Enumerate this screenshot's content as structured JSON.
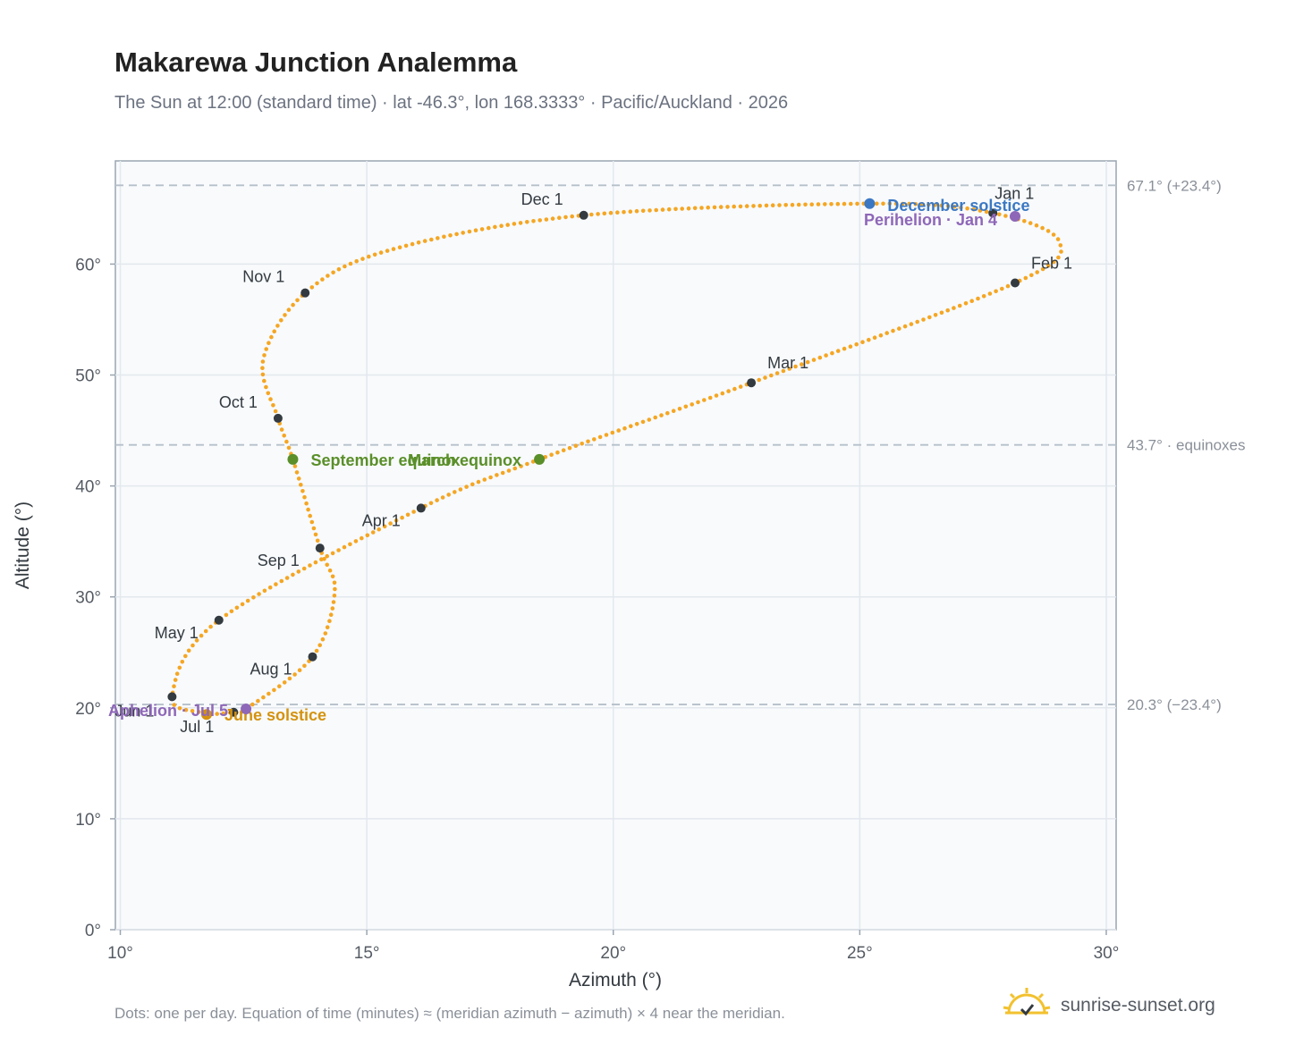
{
  "header": {
    "title": "Makarewa Junction Analemma",
    "subtitle": "The Sun at 12:00 (standard time) · lat -46.3°, lon 168.3333° · Pacific/Auckland · 2026"
  },
  "footer": {
    "note": "Dots: one per day. Equation of time (minutes) ≈ (meridian azimuth − azimuth) × 4 near the meridian.",
    "brand": "sunrise-sunset.org"
  },
  "colors": {
    "curve": "#f5a623",
    "month_marker": "#333a40",
    "solstice_december": "#3b78c3",
    "solstice_june": "#d4920f",
    "equinox": "#5a8f29",
    "apsis": "#8e67b8",
    "ref_line": "#b6c0ca",
    "plot_bg": "#f8fafc",
    "grid": "#e3e8ee"
  },
  "chart_data": {
    "type": "scatter",
    "xlabel": "Azimuth (°)",
    "ylabel": "Altitude (°)",
    "xlim": [
      9.9,
      30.2
    ],
    "ylim": [
      0,
      69.3
    ],
    "x_ticks": [
      10,
      15,
      20,
      25,
      30
    ],
    "y_ticks": [
      0,
      10,
      20,
      30,
      40,
      50,
      60
    ],
    "x_tick_labels": [
      "10°",
      "15°",
      "20°",
      "25°",
      "30°"
    ],
    "y_tick_labels": [
      "0°",
      "10°",
      "20°",
      "30°",
      "40°",
      "50°",
      "60°"
    ],
    "grid": true,
    "series": [
      {
        "kind": "daily",
        "points": [
          [
            27.7,
            64.6
          ],
          [
            29.05,
            62.0
          ],
          [
            28.15,
            58.3
          ],
          [
            22.8,
            49.3
          ],
          [
            18.5,
            42.4
          ],
          [
            16.1,
            38.0
          ],
          [
            12.0,
            27.9
          ],
          [
            11.05,
            21.0
          ],
          [
            11.65,
            19.55
          ],
          [
            11.75,
            19.4
          ],
          [
            12.3,
            19.6
          ],
          [
            12.55,
            19.9
          ],
          [
            13.9,
            24.6
          ],
          [
            14.35,
            30.5
          ],
          [
            14.05,
            34.4
          ],
          [
            13.5,
            42.4
          ],
          [
            13.2,
            46.1
          ],
          [
            12.9,
            51.4
          ],
          [
            13.75,
            57.4
          ],
          [
            15.5,
            61.3
          ],
          [
            19.4,
            64.4
          ],
          [
            25.2,
            65.45
          ],
          [
            27.7,
            64.6
          ]
        ]
      }
    ],
    "month_markers": [
      {
        "label": "Jan 1",
        "x": 27.7,
        "y": 64.6
      },
      {
        "label": "Feb 1",
        "x": 28.15,
        "y": 58.3
      },
      {
        "label": "Mar 1",
        "x": 22.8,
        "y": 49.3
      },
      {
        "label": "Apr 1",
        "x": 16.1,
        "y": 38.0
      },
      {
        "label": "May 1",
        "x": 12.0,
        "y": 27.9
      },
      {
        "label": "Jun 1",
        "x": 11.05,
        "y": 21.0
      },
      {
        "label": "Jul 1",
        "x": 12.3,
        "y": 19.6
      },
      {
        "label": "Aug 1",
        "x": 13.9,
        "y": 24.6
      },
      {
        "label": "Sep 1",
        "x": 14.05,
        "y": 34.4
      },
      {
        "label": "Oct 1",
        "x": 13.2,
        "y": 46.1
      },
      {
        "label": "Nov 1",
        "x": 13.75,
        "y": 57.4
      },
      {
        "label": "Dec 1",
        "x": 19.4,
        "y": 64.4
      }
    ],
    "events": [
      {
        "label": "December solstice",
        "x": 25.2,
        "y": 65.45,
        "kind": "solstice_december"
      },
      {
        "label": "Perihelion · Jan 4",
        "x": 28.15,
        "y": 64.3,
        "kind": "apsis"
      },
      {
        "label": "March equinox",
        "x": 18.5,
        "y": 42.4,
        "kind": "equinox"
      },
      {
        "label": "September equinox",
        "x": 13.5,
        "y": 42.4,
        "kind": "equinox"
      },
      {
        "label": "June solstice",
        "x": 11.75,
        "y": 19.4,
        "kind": "solstice_june"
      },
      {
        "label": "Aphelion · Jul 5",
        "x": 12.55,
        "y": 19.9,
        "kind": "apsis"
      }
    ],
    "reference_lines": [
      {
        "y": 67.1,
        "label": "67.1° (+23.4°)"
      },
      {
        "y": 43.7,
        "label": "43.7° · equinoxes"
      },
      {
        "y": 20.3,
        "label": "20.3° (−23.4°)"
      }
    ]
  }
}
